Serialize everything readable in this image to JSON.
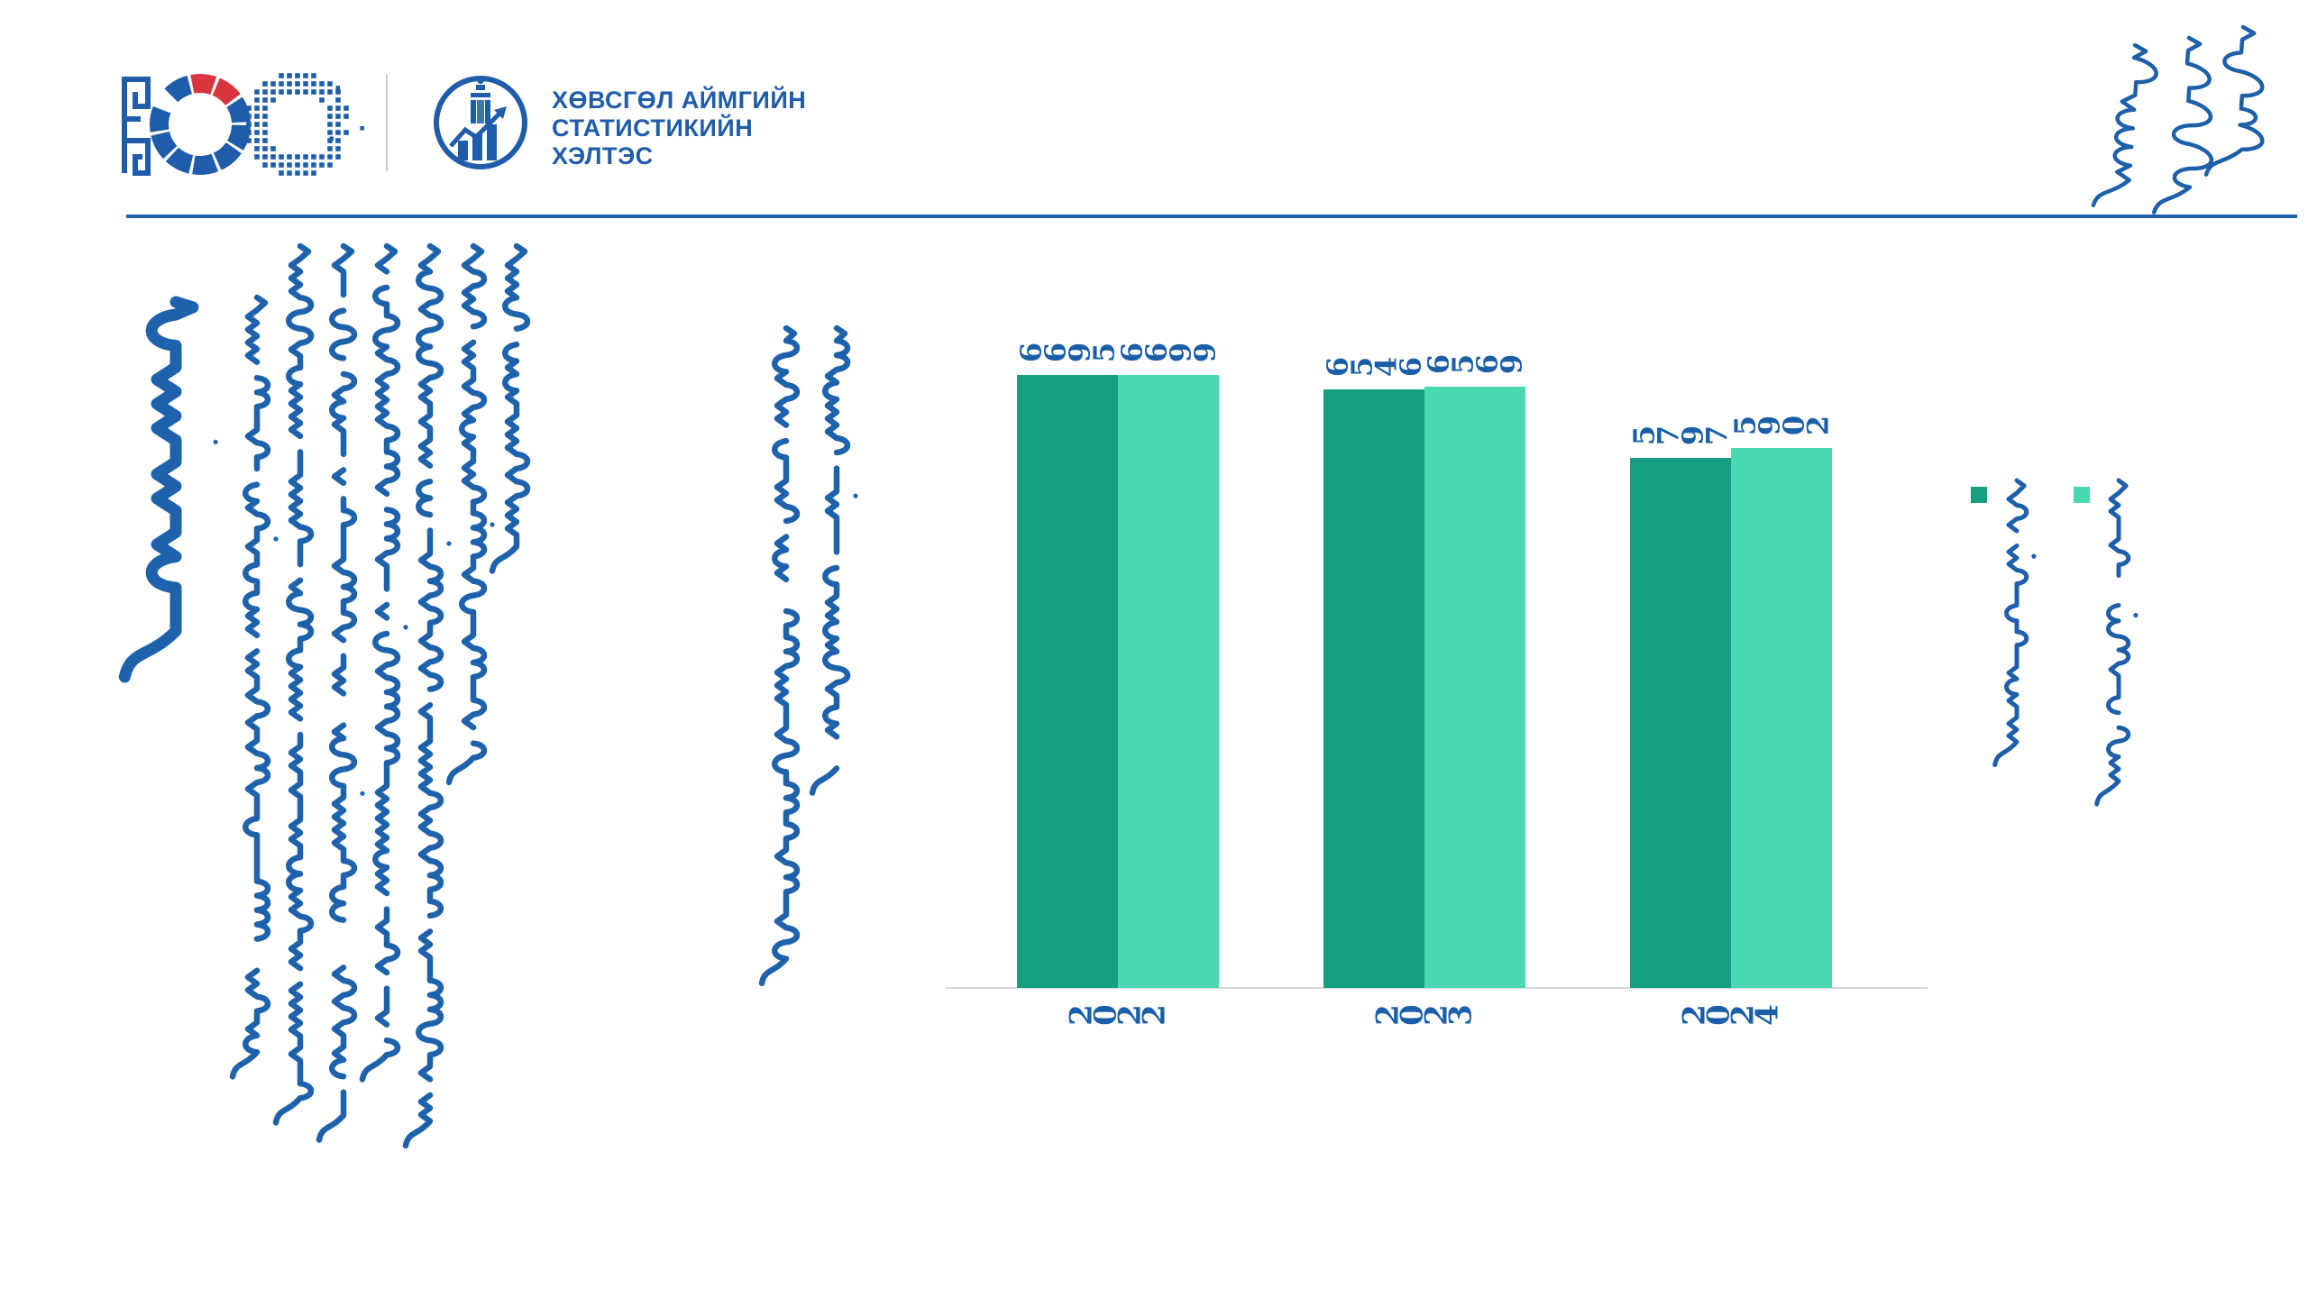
{
  "slide": {
    "background": "#FFFFFF",
    "accent_blue": "#1F5CA9"
  },
  "header": {
    "anniversary_logo": {
      "label": "100",
      "blue": "#1F5CA9",
      "red": "#D8353F",
      "note": "stylized 100th anniversary logo: meander numeral 1 + segmented ring + halftone dotted ring"
    },
    "office": {
      "name_lines": [
        "ХӨВСГӨЛ АЙМГИЙН",
        "СТАТИСТИКИЙН",
        "ХЭЛТЭС"
      ],
      "text_color": "#1F5CA9",
      "emblem_note": "round emblem: soyombo symbol above rising bar chart"
    },
    "top_right_script": {
      "script": "mongol-bichig",
      "style": "calligraphic vertical",
      "columns": 3,
      "color": "#1D5FA8",
      "content": "traditional Mongolian vertical script (calligraphic, not machine-readable)"
    }
  },
  "left_panel": {
    "title_script": {
      "script": "mongol-bichig",
      "style": "large bold vertical title",
      "color": "#1E62AC",
      "content": "traditional Mongolian vertical script title (not machine-readable)"
    },
    "paragraph_1": {
      "script": "mongol-bichig",
      "columns": 7,
      "color": "#1E62AC",
      "content": "traditional Mongolian vertical script paragraph (not machine-readable)"
    },
    "paragraph_2": {
      "script": "mongol-bichig",
      "columns": 2,
      "color": "#1E62AC",
      "content": "traditional Mongolian vertical script paragraph (not machine-readable)"
    }
  },
  "chart_data": {
    "type": "bar",
    "categories": [
      "2022",
      "2023",
      "2024"
    ],
    "series": [
      {
        "name": "series-1-dark-teal",
        "color": "#169E81",
        "values": [
          6695,
          6546,
          5797
        ]
      },
      {
        "name": "series-2-mint",
        "color": "#48D9B3",
        "values": [
          6699,
          6569,
          5902
        ]
      }
    ],
    "value_labels_shown": true,
    "digits_rendered_rotated_90ccw": true,
    "label_color": "#1A5EA8",
    "axis_line_color": "#D8D8D8",
    "ylim": [
      0,
      7000
    ],
    "grid": false,
    "legend": {
      "position": "right",
      "entries": [
        {
          "color": "#169E81",
          "label_script": "mongol-bichig vertical text (not machine-readable)"
        },
        {
          "color": "#3EDBA8",
          "label_script": "mongol-bichig vertical text (not machine-readable)"
        }
      ]
    }
  }
}
